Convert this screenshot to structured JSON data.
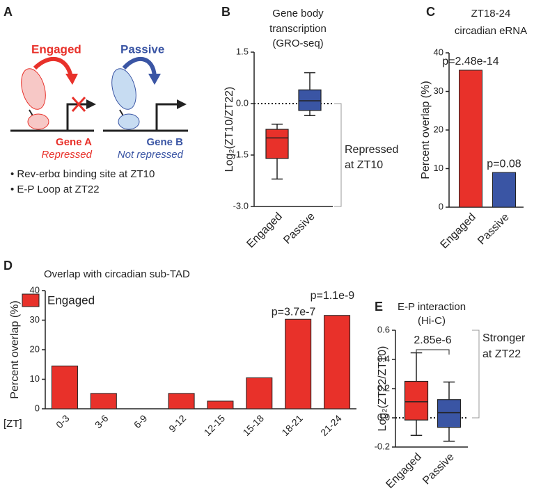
{
  "diagram": {
    "panel": "A",
    "engaged": "Engaged",
    "passive": "Passive",
    "gene_a": "Gene A",
    "gene_a_status": "Repressed",
    "gene_b": "Gene B",
    "gene_b_status": "Not repressed",
    "bullets": [
      "• Rev-erbα binding site at ZT10",
      "• E-P Loop at ZT22"
    ]
  },
  "chart_data": [
    {
      "panel": "B",
      "type": "box",
      "title": [
        "Gene body",
        "transcription",
        "(GRO-seq)"
      ],
      "ylabel": "Log₂(ZT10/ZT22)",
      "categories": [
        "Engaged",
        "Passive"
      ],
      "colors": [
        "#e8312a",
        "#3a55a4"
      ],
      "boxes": [
        {
          "low": -2.2,
          "q1": -1.6,
          "median": -1.0,
          "q3": -0.75,
          "high": -0.6
        },
        {
          "low": -0.35,
          "q1": -0.2,
          "median": 0.08,
          "q3": 0.4,
          "high": 0.9
        }
      ],
      "ylim": [
        -3,
        1.5
      ],
      "yticks": [
        1.5,
        {
          "value": 0,
          "label": "0.0"
        },
        -1.5,
        {
          "value": -3,
          "label": "-3.0"
        }
      ],
      "zero_line": true,
      "side_note": [
        "Repressed",
        "at ZT10"
      ]
    },
    {
      "panel": "C",
      "type": "bar",
      "title": [
        "ZT18-24",
        "circadian eRNA"
      ],
      "ylabel": "Percent overlap (%)",
      "categories": [
        "Engaged",
        "Passive"
      ],
      "values": [
        35.5,
        9
      ],
      "colors": [
        "#e8312a",
        "#3a55a4"
      ],
      "annotations": [
        "p=2.48e-14",
        "p=0.08"
      ],
      "ylim": [
        0,
        40
      ],
      "yticks": [
        0,
        10,
        20,
        30,
        40
      ]
    },
    {
      "panel": "D",
      "type": "bar",
      "title": "Overlap with circadian sub-TAD",
      "ylabel": "Percent overlap (%)",
      "xlabel": "[ZT]",
      "categories": [
        "0-3",
        "3-6",
        "6-9",
        "9-12",
        "12-15",
        "15-18",
        "18-21",
        "21-24"
      ],
      "series": [
        {
          "name": "Engaged",
          "color": "#e8312a",
          "values": [
            14.5,
            5.2,
            0,
            5.2,
            2.6,
            10.5,
            30.3,
            31.6
          ]
        }
      ],
      "annotations": [
        null,
        null,
        null,
        null,
        null,
        null,
        "p=3.7e-7",
        "p=1.1e-9"
      ],
      "legend": "upper left",
      "ylim": [
        0,
        40
      ],
      "yticks": [
        0,
        10,
        20,
        30,
        40
      ]
    },
    {
      "panel": "E",
      "type": "box",
      "title": [
        "E-P interaction",
        "(Hi-C)"
      ],
      "ylabel": "Log₂(ZT22/ZT10)",
      "categories": [
        "Engaged",
        "Passive"
      ],
      "colors": [
        "#e8312a",
        "#3a55a4"
      ],
      "boxes": [
        {
          "low": -0.12,
          "q1": -0.015,
          "median": 0.11,
          "q3": 0.25,
          "high": 0.445
        },
        {
          "low": -0.16,
          "q1": -0.065,
          "median": 0.035,
          "q3": 0.125,
          "high": 0.245
        }
      ],
      "ylim": [
        -0.2,
        0.6
      ],
      "yticks": [
        {
          "value": -0.2,
          "label": "-0.2"
        },
        {
          "value": 0,
          "label": "0.0"
        },
        0.2,
        0.4,
        0.6
      ],
      "zero_line": true,
      "bracket": "2.85e-6",
      "side_note": [
        "Stronger",
        "at ZT22"
      ]
    }
  ]
}
